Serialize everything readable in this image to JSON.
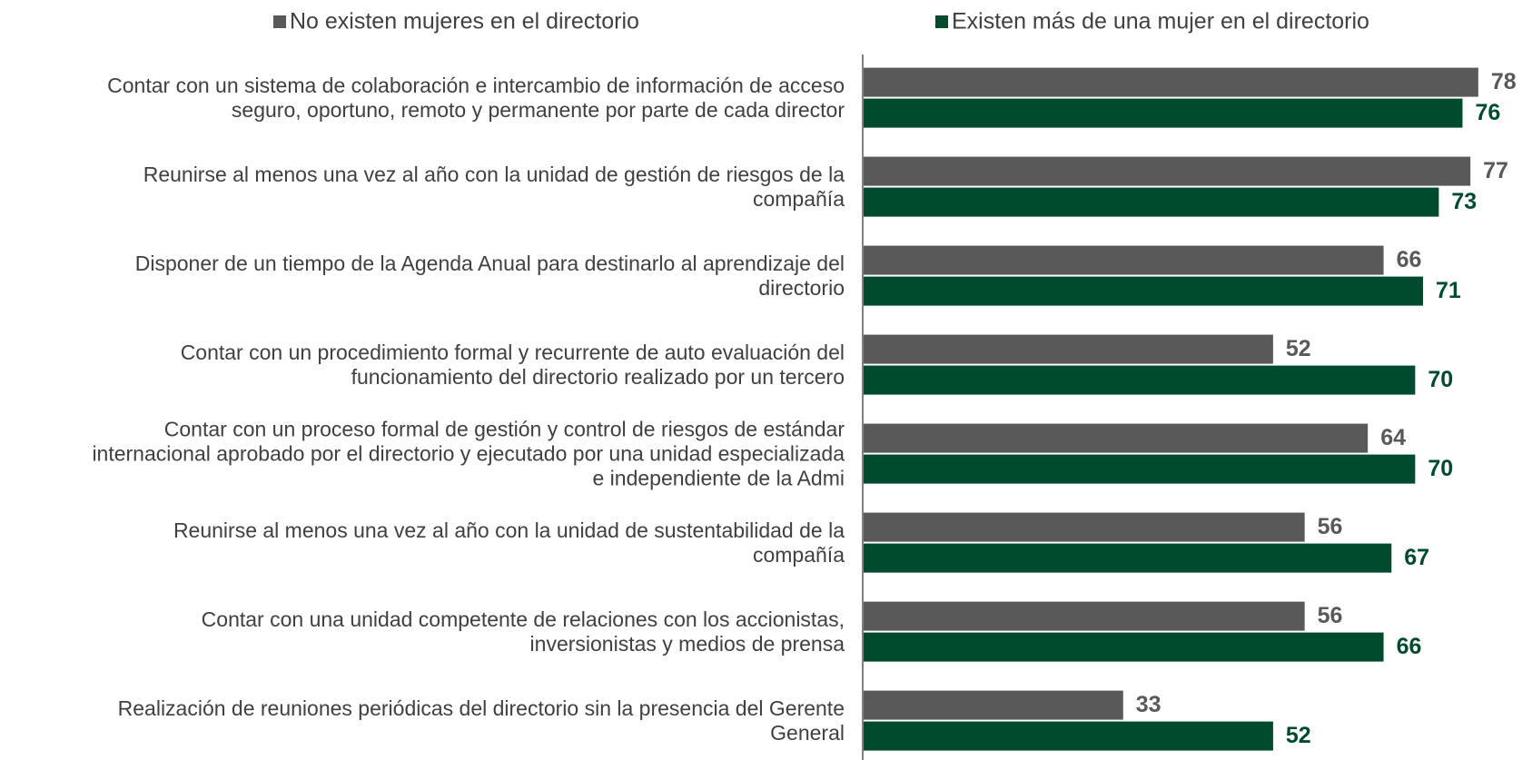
{
  "chart_data": {
    "type": "hbar",
    "categories": [
      "Contar con un sistema de colaboración e intercambio de información de acceso\nseguro, oportuno, remoto y permanente por parte de cada director",
      "Reunirse al menos una vez al año con la unidad de gestión de riesgos de la\ncompañía",
      "Disponer de un tiempo de la Agenda Anual para destinarlo al aprendizaje del\ndirectorio",
      "Contar con un procedimiento formal y recurrente de auto evaluación del\nfuncionamiento del directorio realizado por un tercero",
      "Contar con un proceso formal de gestión y control de riesgos de estándar\ninternacional aprobado por el directorio y ejecutado por una unidad especializada\ne independiente de la Admi",
      "Reunirse al menos una vez al año con la unidad de sustentabilidad de la\ncompañía",
      "Contar con una unidad competente de relaciones con los accionistas,\ninversionistas y medios de prensa",
      "Realización de reuniones periódicas del directorio sin la presencia del Gerente\nGeneral"
    ],
    "series": [
      {
        "name": "No existen mujeres en el directorio",
        "color": "#595959",
        "values": [
          78,
          77,
          66,
          52,
          64,
          56,
          56,
          33
        ]
      },
      {
        "name": "Existen más de una mujer en el directorio",
        "color": "#004b2d",
        "values": [
          76,
          73,
          71,
          70,
          70,
          67,
          66,
          52
        ]
      }
    ],
    "xlim": [
      0,
      84
    ]
  }
}
